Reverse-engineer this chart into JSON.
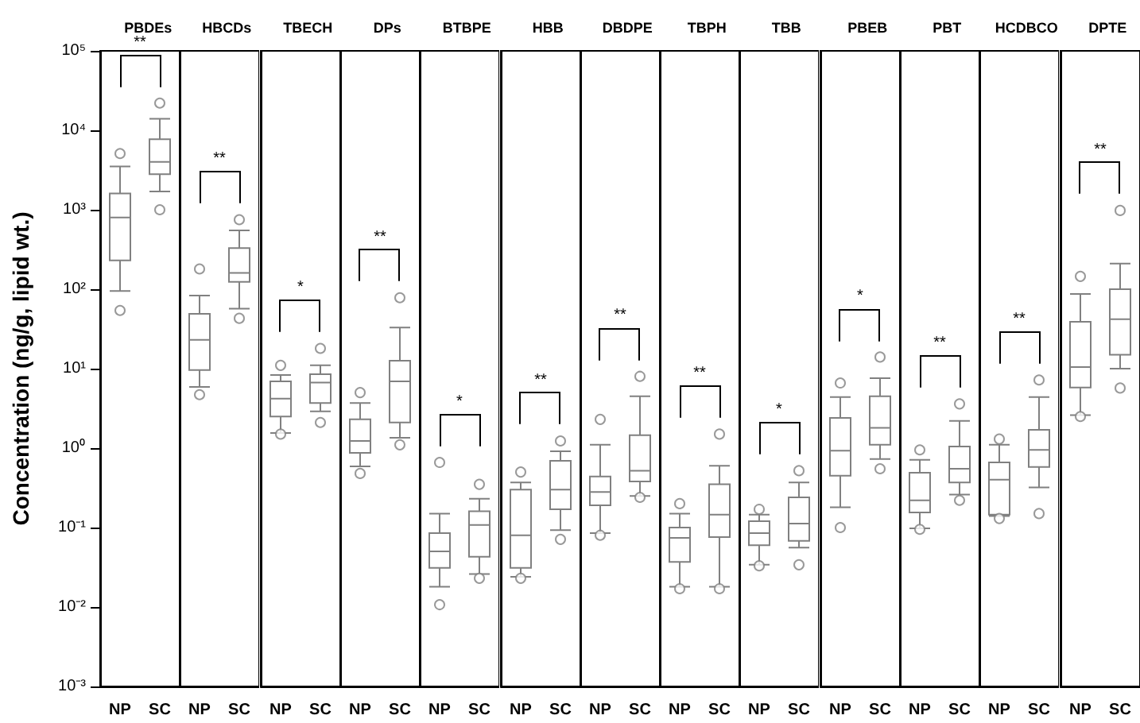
{
  "chart_data": [
    {
      "type": "box",
      "title": "PBDEs",
      "ylabel": "Concentration (ng/g, lipid wt.)",
      "categories": [
        "NP",
        "SC"
      ],
      "series": [
        {
          "color": "#808080",
          "boxes": [
            {
              "low": 95,
              "q1": 230,
              "median": 800,
              "q3": 1600,
              "high": 3500,
              "outliers": [
                5100,
                54
              ]
            },
            {
              "low": 1700,
              "q1": 2800,
              "median": 4000,
              "q3": 7700,
              "high": 14000,
              "outliers": [
                22000,
                1000
              ]
            }
          ]
        }
      ],
      "ylim": [
        0.001,
        100000
      ],
      "yticks": [
        {
          "value": 0.001,
          "label": "10⁻³"
        },
        {
          "value": 0.01,
          "label": "10⁻²"
        },
        {
          "value": 0.1,
          "label": "10⁻¹"
        },
        {
          "value": 1,
          "label": "10⁰"
        },
        {
          "value": 10,
          "label": "10¹"
        },
        {
          "value": 100,
          "label": "10²"
        },
        {
          "value": 1000,
          "label": "10³"
        },
        {
          "value": 10000,
          "label": "10⁴"
        },
        {
          "value": 100000,
          "label": "10⁵"
        }
      ],
      "log": true,
      "marker": "circle",
      "annotations": [
        "**"
      ]
    },
    {
      "type": "box",
      "title": "HBCDs",
      "categories": [
        "NP",
        "SC"
      ],
      "series": [
        {
          "color": "#808080",
          "boxes": [
            {
              "low": 5.9,
              "q1": 9.6,
              "median": 23,
              "q3": 49,
              "high": 83,
              "outliers": [
                180,
                4.7
              ]
            },
            {
              "low": 57,
              "q1": 124,
              "median": 160,
              "q3": 330,
              "high": 550,
              "outliers": [
                750,
                43
              ]
            }
          ]
        }
      ],
      "ylim": [
        0.001,
        100000
      ],
      "log": true,
      "marker": "circle",
      "tick_labels": "x",
      "annotations": [
        "**"
      ]
    },
    {
      "type": "box",
      "title": "TBECH",
      "categories": [
        "NP",
        "SC"
      ],
      "series": [
        {
          "color": "#808080",
          "boxes": [
            {
              "low": 1.55,
              "q1": 2.5,
              "median": 4.2,
              "q3": 6.9,
              "high": 8.3,
              "outliers": [
                11,
                1.5
              ]
            },
            {
              "low": 2.9,
              "q1": 3.7,
              "median": 6.7,
              "q3": 8.5,
              "high": 11,
              "outliers": [
                18,
                2.1
              ]
            }
          ]
        }
      ],
      "ylim": [
        0.001,
        100000
      ],
      "log": true,
      "marker": "circle",
      "tick_labels": "x",
      "annotations": [
        "*"
      ]
    },
    {
      "type": "box",
      "title": "DPs",
      "categories": [
        "NP",
        "SC"
      ],
      "series": [
        {
          "color": "#808080",
          "boxes": [
            {
              "low": 0.59,
              "q1": 0.87,
              "median": 1.23,
              "q3": 2.3,
              "high": 3.7,
              "outliers": [
                5,
                0.48
              ]
            },
            {
              "low": 1.35,
              "q1": 2.1,
              "median": 6.9,
              "q3": 12.6,
              "high": 33,
              "outliers": [
                78,
                1.1
              ]
            }
          ]
        }
      ],
      "ylim": [
        0.001,
        100000
      ],
      "log": true,
      "marker": "circle",
      "tick_labels": "x",
      "annotations": [
        "**"
      ]
    },
    {
      "type": "box",
      "title": "BTBPE",
      "categories": [
        "NP",
        "SC"
      ],
      "series": [
        {
          "color": "#808080",
          "boxes": [
            {
              "low": 0.018,
              "q1": 0.031,
              "median": 0.05,
              "q3": 0.085,
              "high": 0.15,
              "outliers": [
                0.66,
                0.0107
              ]
            },
            {
              "low": 0.026,
              "q1": 0.043,
              "median": 0.108,
              "q3": 0.16,
              "high": 0.23,
              "outliers": [
                0.35,
                0.023
              ]
            }
          ]
        }
      ],
      "ylim": [
        0.001,
        100000
      ],
      "log": true,
      "marker": "circle",
      "tick_labels": "x",
      "annotations": [
        "*"
      ]
    },
    {
      "type": "box",
      "title": "HBB",
      "categories": [
        "NP",
        "SC"
      ],
      "series": [
        {
          "color": "#808080",
          "boxes": [
            {
              "low": 0.024,
              "q1": 0.031,
              "median": 0.08,
              "q3": 0.3,
              "high": 0.37,
              "outliers": [
                0.5,
                0.023
              ]
            },
            {
              "low": 0.093,
              "q1": 0.17,
              "median": 0.3,
              "q3": 0.69,
              "high": 0.91,
              "outliers": [
                1.23,
                0.071
              ]
            }
          ]
        }
      ],
      "ylim": [
        0.001,
        100000
      ],
      "log": true,
      "marker": "circle",
      "tick_labels": "x",
      "annotations": [
        "**"
      ]
    },
    {
      "type": "box",
      "title": "DBDPE",
      "categories": [
        "NP",
        "SC"
      ],
      "series": [
        {
          "color": "#808080",
          "boxes": [
            {
              "low": 0.085,
              "q1": 0.19,
              "median": 0.28,
              "q3": 0.44,
              "high": 1.1,
              "outliers": [
                2.3,
                0.08
              ]
            },
            {
              "low": 0.25,
              "q1": 0.38,
              "median": 0.52,
              "q3": 1.45,
              "high": 4.5,
              "outliers": [
                8,
                0.24
              ]
            }
          ]
        }
      ],
      "ylim": [
        0.001,
        100000
      ],
      "log": true,
      "marker": "circle",
      "tick_labels": "x",
      "annotations": [
        "**"
      ]
    },
    {
      "type": "box",
      "title": "TBPH",
      "categories": [
        "NP",
        "SC"
      ],
      "series": [
        {
          "color": "#808080",
          "boxes": [
            {
              "low": 0.018,
              "q1": 0.037,
              "median": 0.074,
              "q3": 0.1,
              "high": 0.15,
              "outliers": [
                0.2,
                0.017
              ]
            },
            {
              "low": 0.018,
              "q1": 0.076,
              "median": 0.145,
              "q3": 0.35,
              "high": 0.6,
              "outliers": [
                1.5,
                0.017
              ]
            }
          ]
        }
      ],
      "ylim": [
        0.001,
        100000
      ],
      "log": true,
      "marker": "circle",
      "tick_labels": "x",
      "annotations": [
        "**"
      ]
    },
    {
      "type": "box",
      "title": "TBB",
      "categories": [
        "NP",
        "SC"
      ],
      "series": [
        {
          "color": "#808080",
          "boxes": [
            {
              "low": 0.034,
              "q1": 0.06,
              "median": 0.085,
              "q3": 0.12,
              "high": 0.145,
              "outliers": [
                0.17,
                0.033
              ]
            },
            {
              "low": 0.056,
              "q1": 0.068,
              "median": 0.112,
              "q3": 0.24,
              "high": 0.37,
              "outliers": [
                0.52,
                0.034
              ]
            }
          ]
        }
      ],
      "ylim": [
        0.001,
        100000
      ],
      "log": true,
      "marker": "circle",
      "tick_labels": "x",
      "annotations": [
        "*"
      ]
    },
    {
      "type": "box",
      "title": "PBEB",
      "categories": [
        "NP",
        "SC"
      ],
      "series": [
        {
          "color": "#808080",
          "boxes": [
            {
              "low": 0.18,
              "q1": 0.45,
              "median": 0.93,
              "q3": 2.4,
              "high": 4.4,
              "outliers": [
                6.6,
                0.1
              ]
            },
            {
              "low": 0.73,
              "q1": 1.1,
              "median": 1.8,
              "q3": 4.5,
              "high": 7.6,
              "outliers": [
                14,
                0.55
              ]
            }
          ]
        }
      ],
      "ylim": [
        0.001,
        100000
      ],
      "log": true,
      "marker": "circle",
      "tick_labels": "x",
      "annotations": [
        "*"
      ]
    },
    {
      "type": "box",
      "title": "PBT",
      "categories": [
        "NP",
        "SC"
      ],
      "series": [
        {
          "color": "#808080",
          "boxes": [
            {
              "low": 0.098,
              "q1": 0.155,
              "median": 0.22,
              "q3": 0.49,
              "high": 0.71,
              "outliers": [
                0.95,
                0.095
              ]
            },
            {
              "low": 0.26,
              "q1": 0.37,
              "median": 0.55,
              "q3": 1.05,
              "high": 2.2,
              "outliers": [
                3.6,
                0.22
              ]
            }
          ]
        }
      ],
      "ylim": [
        0.001,
        100000
      ],
      "log": true,
      "marker": "circle",
      "tick_labels": "x",
      "annotations": [
        "**"
      ]
    },
    {
      "type": "box",
      "title": "HCDBCO",
      "categories": [
        "NP",
        "SC"
      ],
      "series": [
        {
          "color": "#808080",
          "boxes": [
            {
              "low": 0.14,
              "q1": 0.145,
              "median": 0.4,
              "q3": 0.66,
              "high": 1.1,
              "outliers": [
                1.3,
                0.13
              ]
            },
            {
              "low": 0.32,
              "q1": 0.58,
              "median": 0.95,
              "q3": 1.7,
              "high": 4.4,
              "outliers": [
                7.2,
                0.15
              ]
            }
          ]
        }
      ],
      "ylim": [
        0.001,
        100000
      ],
      "log": true,
      "marker": "circle",
      "tick_labels": "x",
      "annotations": [
        "**"
      ]
    },
    {
      "type": "box",
      "title": "DPTE",
      "categories": [
        "NP",
        "SC"
      ],
      "series": [
        {
          "color": "#808080",
          "boxes": [
            {
              "low": 2.6,
              "q1": 5.8,
              "median": 10.5,
              "q3": 39,
              "high": 87,
              "outliers": [
                145,
                2.5
              ]
            },
            {
              "low": 10,
              "q1": 15,
              "median": 42,
              "q3": 100,
              "high": 210,
              "outliers": [
                980,
                5.7
              ]
            }
          ]
        }
      ],
      "ylim": [
        0.001,
        100000
      ],
      "log": true,
      "marker": "circle",
      "tick_labels": "x",
      "annotations": [
        "**"
      ]
    }
  ]
}
